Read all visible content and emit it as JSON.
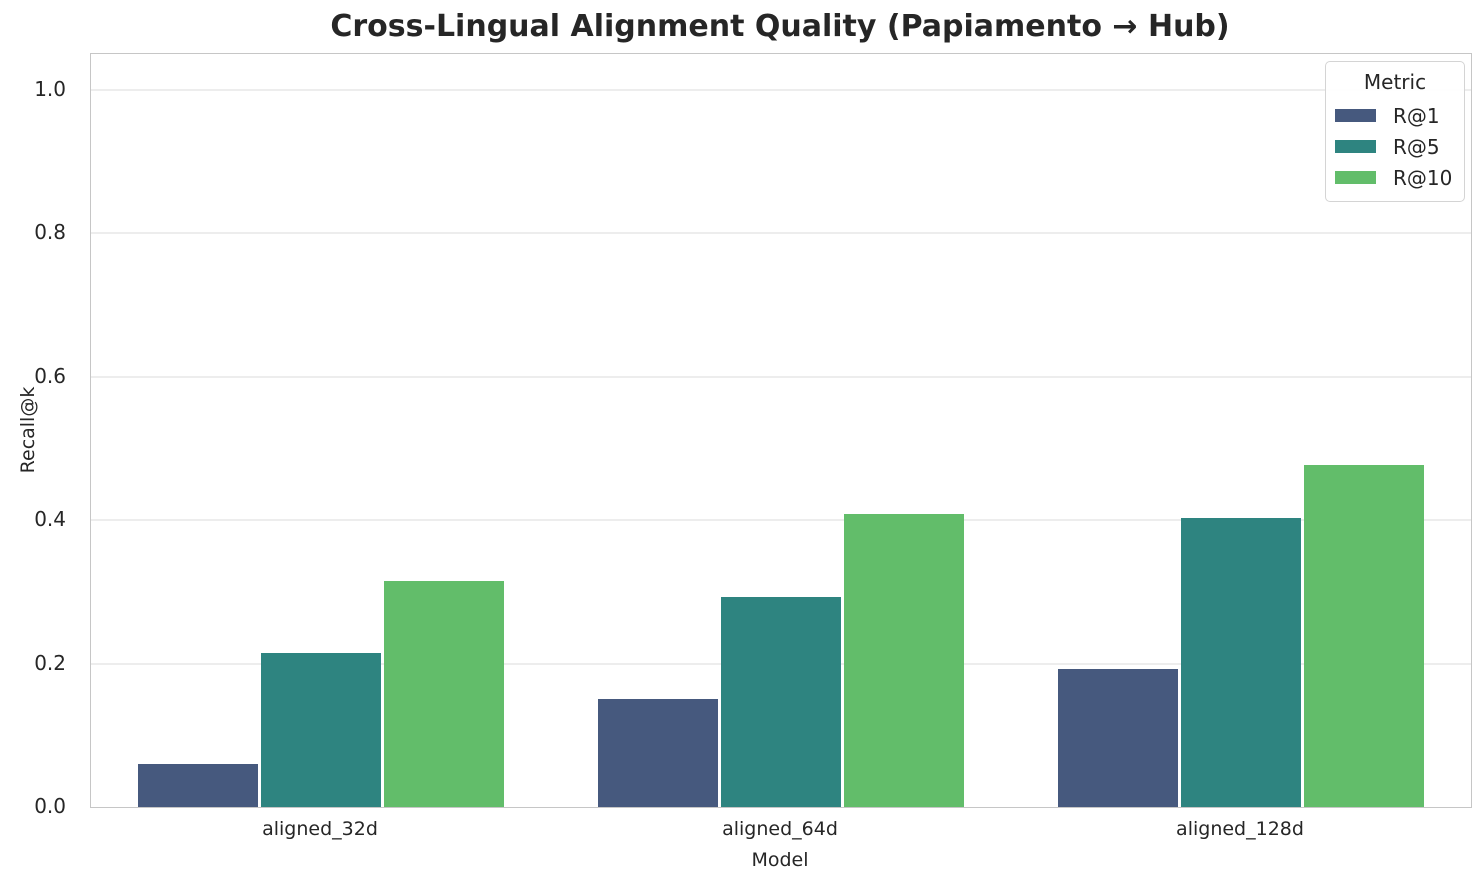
{
  "chart_data": {
    "type": "bar",
    "title": "Cross-Lingual Alignment Quality (Papiamento → Hub)",
    "xlabel": "Model",
    "ylabel": "Recall@k",
    "categories": [
      "aligned_32d",
      "aligned_64d",
      "aligned_128d"
    ],
    "series": [
      {
        "name": "R@1",
        "color": "#46597e",
        "values": [
          0.06,
          0.15,
          0.192
        ]
      },
      {
        "name": "R@5",
        "color": "#2e8480",
        "values": [
          0.215,
          0.293,
          0.403
        ]
      },
      {
        "name": "R@10",
        "color": "#62bd6a",
        "values": [
          0.315,
          0.409,
          0.477
        ]
      }
    ],
    "ylim": [
      0,
      1.05
    ],
    "yticks": [
      0.0,
      0.2,
      0.4,
      0.6,
      0.8,
      1.0
    ],
    "grid": true,
    "legend_title": "Metric",
    "legend_position": "upper right",
    "text_color": "#262626"
  }
}
